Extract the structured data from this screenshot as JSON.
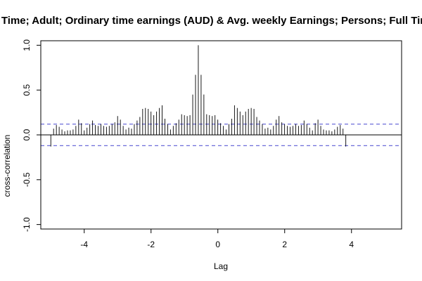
{
  "chart_data": {
    "type": "bar",
    "title": "ll Time; Adult; Ordinary time earnings (AUD) & Avg. weekly Earnings; Persons; Full Tim",
    "xlabel": "Lag",
    "ylabel": "cross-correlation",
    "xlim": [
      -5.3,
      5.5
    ],
    "ylim": [
      -1.05,
      1.05
    ],
    "xticks": [
      "-4",
      "-2",
      "0",
      "2",
      "4"
    ],
    "xtick_values": [
      -4,
      -2,
      0,
      2,
      4
    ],
    "yticks": [
      "-1.0",
      "-0.5",
      "0.0",
      "0.5",
      "1.0"
    ],
    "ytick_values": [
      -1.0,
      -0.5,
      0.0,
      0.5,
      1.0
    ],
    "ci_upper": 0.12,
    "ci_lower": -0.12,
    "lag_step": 0.0833,
    "lag_start": -5.0,
    "values": [
      -0.13,
      0.07,
      0.11,
      0.09,
      0.06,
      0.04,
      0.05,
      0.05,
      0.06,
      0.1,
      0.17,
      0.13,
      0.05,
      0.08,
      0.12,
      0.16,
      0.11,
      0.1,
      0.12,
      0.1,
      0.09,
      0.1,
      0.12,
      0.14,
      0.21,
      0.17,
      0.1,
      0.06,
      0.08,
      0.07,
      0.12,
      0.16,
      0.2,
      0.29,
      0.3,
      0.29,
      0.26,
      0.22,
      0.26,
      0.3,
      0.33,
      0.18,
      0.12,
      0.06,
      0.1,
      0.13,
      0.17,
      0.23,
      0.22,
      0.21,
      0.22,
      0.45,
      0.67,
      1.0,
      0.67,
      0.45,
      0.23,
      0.22,
      0.21,
      0.22,
      0.17,
      0.13,
      0.1,
      0.06,
      0.12,
      0.18,
      0.33,
      0.3,
      0.26,
      0.22,
      0.26,
      0.29,
      0.3,
      0.29,
      0.2,
      0.16,
      0.12,
      0.07,
      0.08,
      0.06,
      0.1,
      0.17,
      0.21,
      0.14,
      0.12,
      0.1,
      0.09,
      0.1,
      0.12,
      0.1,
      0.11,
      0.16,
      0.12,
      0.08,
      0.05,
      0.13,
      0.17,
      0.1,
      0.06,
      0.05,
      0.05,
      0.04,
      0.06,
      0.09,
      0.11,
      0.07,
      -0.13
    ],
    "colors": {
      "ci": "#5b5bd6",
      "bars": "#000000",
      "frame": "#000000"
    }
  }
}
